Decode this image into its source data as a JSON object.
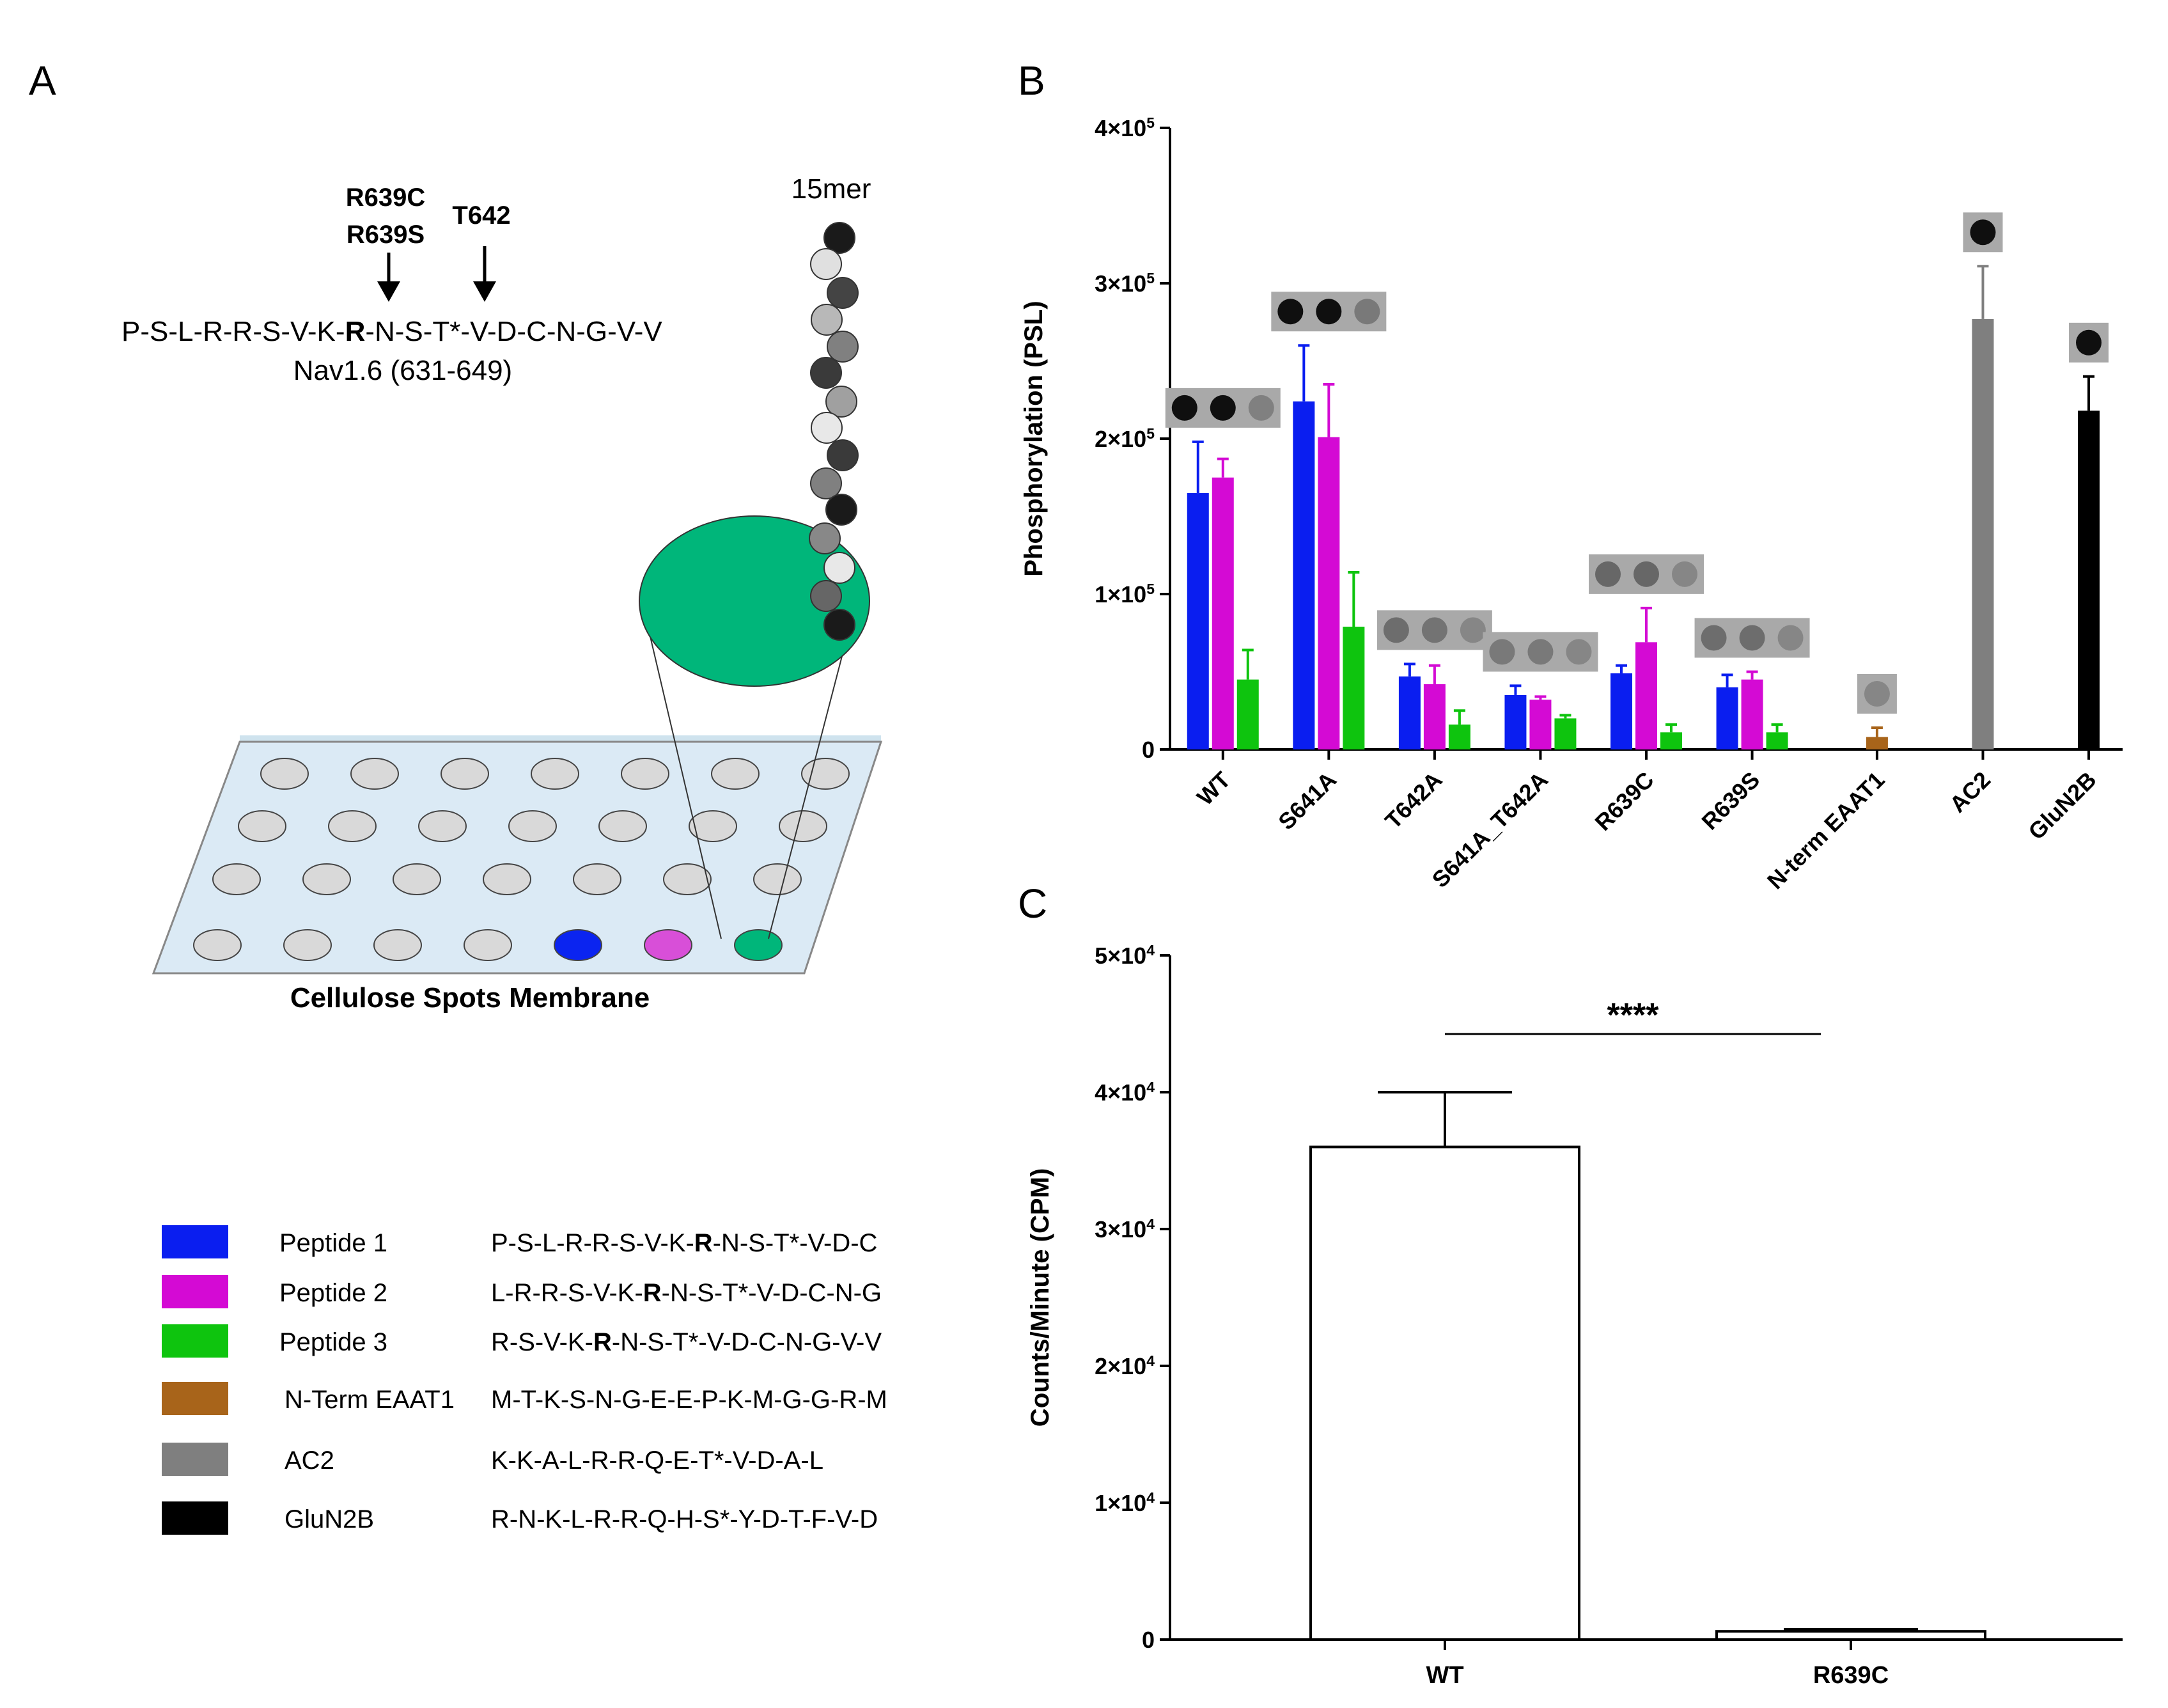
{
  "panels": {
    "a": "A",
    "b": "B",
    "c": "C"
  },
  "panel_a": {
    "mutation_r639c": "R639C",
    "mutation_r639s": "R639S",
    "site_t642": "T642",
    "seq_before": "P-S-L-R-R-S-V-K-",
    "seq_bold": "R",
    "seq_after": "-N-S-T*-V-D-C-N-G-V-V",
    "nav_label": "Nav1.6 (631-649)",
    "mer_label": "15mer",
    "bead_shades": [
      "#1a1a1a",
      "#e0e0e0",
      "#444444",
      "#b8b8b8",
      "#808080",
      "#3a3a3a",
      "#a0a0a0",
      "#e8e8e8",
      "#3a3a3a",
      "#808080",
      "#1a1a1a",
      "#888888",
      "#e8e8e8",
      "#666666"
    ],
    "membrane_label": "Cellulose Spots Membrane",
    "spot_colors": {
      "gray": "#d9d9d9",
      "peptide1": "#0b24f0",
      "peptide2": "#d84fd8",
      "peptide3": "#00b67a"
    }
  },
  "legend": [
    {
      "name": "Peptide 1",
      "color": "#0a1ef0",
      "seq_before": "P-S-L-R-R-S-V-K-",
      "seq_bold": "R",
      "seq_after": "-N-S-T*-V-D-C"
    },
    {
      "name": "Peptide 2",
      "color": "#d40ad4",
      "seq_before": "L-R-R-S-V-K-",
      "seq_bold": "R",
      "seq_after": "-N-S-T*-V-D-C-N-G"
    },
    {
      "name": "Peptide 3",
      "color": "#0ec40e",
      "seq_before": "R-S-V-K-",
      "seq_bold": "R",
      "seq_after": "-N-S-T*-V-D-C-N-G-V-V"
    },
    {
      "name": "N-Term EAAT1",
      "color": "#a8641a",
      "seq_before": "M-T-K-S-N-G-E-E-P-K-M-G-G-R-M",
      "seq_bold": "",
      "seq_after": ""
    },
    {
      "name": "AC2",
      "color": "#7f7f7f",
      "seq_before": "K-K-A-L-R-R-Q-E-T*-V-D-A-L",
      "seq_bold": "",
      "seq_after": ""
    },
    {
      "name": "GluN2B",
      "color": "#000000",
      "seq_before": "R-N-K-L-R-R-Q-H-S*-Y-D-T-F-V-D",
      "seq_bold": "",
      "seq_after": ""
    }
  ],
  "chart_data": [
    {
      "panel": "B",
      "type": "bar",
      "ylabel": "Phosphorylation (PSL)",
      "ylim": [
        0,
        400000
      ],
      "yticks": [
        {
          "value": 0,
          "mant": "0",
          "exp": ""
        },
        {
          "value": 100000,
          "mant": "1×10",
          "exp": "5"
        },
        {
          "value": 200000,
          "mant": "2×10",
          "exp": "5"
        },
        {
          "value": 300000,
          "mant": "3×10",
          "exp": "5"
        },
        {
          "value": 400000,
          "mant": "4×10",
          "exp": "5"
        }
      ],
      "groups": [
        {
          "label": "WT",
          "bars": [
            {
              "series": "Peptide 1",
              "value": 165000,
              "error": 33000
            },
            {
              "series": "Peptide 2",
              "value": 175000,
              "error": 12000
            },
            {
              "series": "Peptide 3",
              "value": 45000,
              "error": 19000
            }
          ],
          "blot": [
            1,
            1,
            0.1
          ]
        },
        {
          "label": "S641A",
          "bars": [
            {
              "series": "Peptide 1",
              "value": 224000,
              "error": 36000
            },
            {
              "series": "Peptide 2",
              "value": 201000,
              "error": 34000
            },
            {
              "series": "Peptide 3",
              "value": 79000,
              "error": 35000
            }
          ],
          "blot": [
            1,
            1,
            0.15
          ]
        },
        {
          "label": "T642A",
          "bars": [
            {
              "series": "Peptide 1",
              "value": 47000,
              "error": 8000
            },
            {
              "series": "Peptide 2",
              "value": 42000,
              "error": 12000
            },
            {
              "series": "Peptide 3",
              "value": 16000,
              "error": 9000
            }
          ],
          "blot": [
            0.25,
            0.2,
            0.05
          ]
        },
        {
          "label": "S641A_T642A",
          "bars": [
            {
              "series": "Peptide 1",
              "value": 35000,
              "error": 6000
            },
            {
              "series": "Peptide 2",
              "value": 32000,
              "error": 2000
            },
            {
              "series": "Peptide 3",
              "value": 20000,
              "error": 2000
            }
          ],
          "blot": [
            0.15,
            0.15,
            0.05
          ]
        },
        {
          "label": "R639C",
          "bars": [
            {
              "series": "Peptide 1",
              "value": 49000,
              "error": 5000
            },
            {
              "series": "Peptide 2",
              "value": 69000,
              "error": 22000
            },
            {
              "series": "Peptide 3",
              "value": 11000,
              "error": 5000
            }
          ],
          "blot": [
            0.3,
            0.3,
            0.05
          ]
        },
        {
          "label": "R639S",
          "bars": [
            {
              "series": "Peptide 1",
              "value": 40000,
              "error": 8000
            },
            {
              "series": "Peptide 2",
              "value": 45000,
              "error": 5000
            },
            {
              "series": "Peptide 3",
              "value": 11000,
              "error": 5000
            }
          ],
          "blot": [
            0.25,
            0.25,
            0.05
          ]
        },
        {
          "label": "N-term EAAT1",
          "bars": [
            {
              "series": "N-Term EAAT1",
              "value": 8000,
              "error": 6000
            }
          ],
          "blot": [
            0.05
          ]
        },
        {
          "label": "AC2",
          "bars": [
            {
              "series": "AC2",
              "value": 277000,
              "error": 34000
            }
          ],
          "blot": [
            1
          ]
        },
        {
          "label": "GluN2B",
          "bars": [
            {
              "series": "GluN2B",
              "value": 218000,
              "error": 22000
            }
          ],
          "blot": [
            1
          ]
        }
      ]
    },
    {
      "panel": "C",
      "type": "bar",
      "ylabel": "Counts/Minute (CPM)",
      "ylim": [
        0,
        50000
      ],
      "yticks": [
        {
          "value": 0,
          "mant": "0",
          "exp": ""
        },
        {
          "value": 10000,
          "mant": "1×10",
          "exp": "4"
        },
        {
          "value": 20000,
          "mant": "2×10",
          "exp": "4"
        },
        {
          "value": 30000,
          "mant": "3×10",
          "exp": "4"
        },
        {
          "value": 40000,
          "mant": "4×10",
          "exp": "4"
        },
        {
          "value": 50000,
          "mant": "5×10",
          "exp": "4"
        }
      ],
      "categories": [
        "WT",
        "R639C"
      ],
      "values": [
        36000,
        600
      ],
      "errors": [
        4000,
        150
      ],
      "significance": "****"
    }
  ]
}
